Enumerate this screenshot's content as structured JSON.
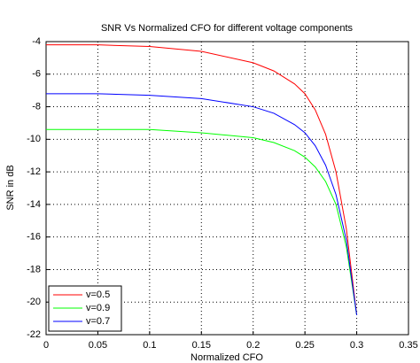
{
  "chart_data": {
    "type": "line",
    "title": "SNR Vs Normalized CFO for different voltage components",
    "x_label": "Normalized CFO",
    "y_label": "SNR in dB",
    "x": [
      0,
      0.05,
      0.1,
      0.15,
      0.2,
      0.22,
      0.24,
      0.25,
      0.26,
      0.27,
      0.28,
      0.29,
      0.3
    ],
    "series": [
      {
        "name": "v=0.5",
        "color": "#ff0000",
        "values": [
          -4.2,
          -4.2,
          -4.3,
          -4.6,
          -5.3,
          -5.8,
          -6.6,
          -7.2,
          -8.2,
          -9.7,
          -12.0,
          -15.5,
          -20.8
        ]
      },
      {
        "name": "v=0.9",
        "color": "#00ff00",
        "values": [
          -9.4,
          -9.4,
          -9.4,
          -9.6,
          -9.9,
          -10.2,
          -10.7,
          -11.1,
          -11.7,
          -12.6,
          -14.0,
          -16.6,
          -20.8
        ]
      },
      {
        "name": "v=0.7",
        "color": "#0000ff",
        "values": [
          -7.2,
          -7.2,
          -7.3,
          -7.5,
          -8.0,
          -8.4,
          -9.1,
          -9.6,
          -10.4,
          -11.6,
          -13.4,
          -16.2,
          -20.8
        ]
      }
    ],
    "xlim": [
      0,
      0.35
    ],
    "ylim": [
      -22,
      -4
    ],
    "xticks": [
      0,
      0.05,
      0.1,
      0.15,
      0.2,
      0.25,
      0.3,
      0.35
    ],
    "yticks": [
      -4,
      -6,
      -8,
      -10,
      -12,
      -14,
      -16,
      -18,
      -20,
      -22
    ],
    "grid": true,
    "legend": "lower left"
  }
}
